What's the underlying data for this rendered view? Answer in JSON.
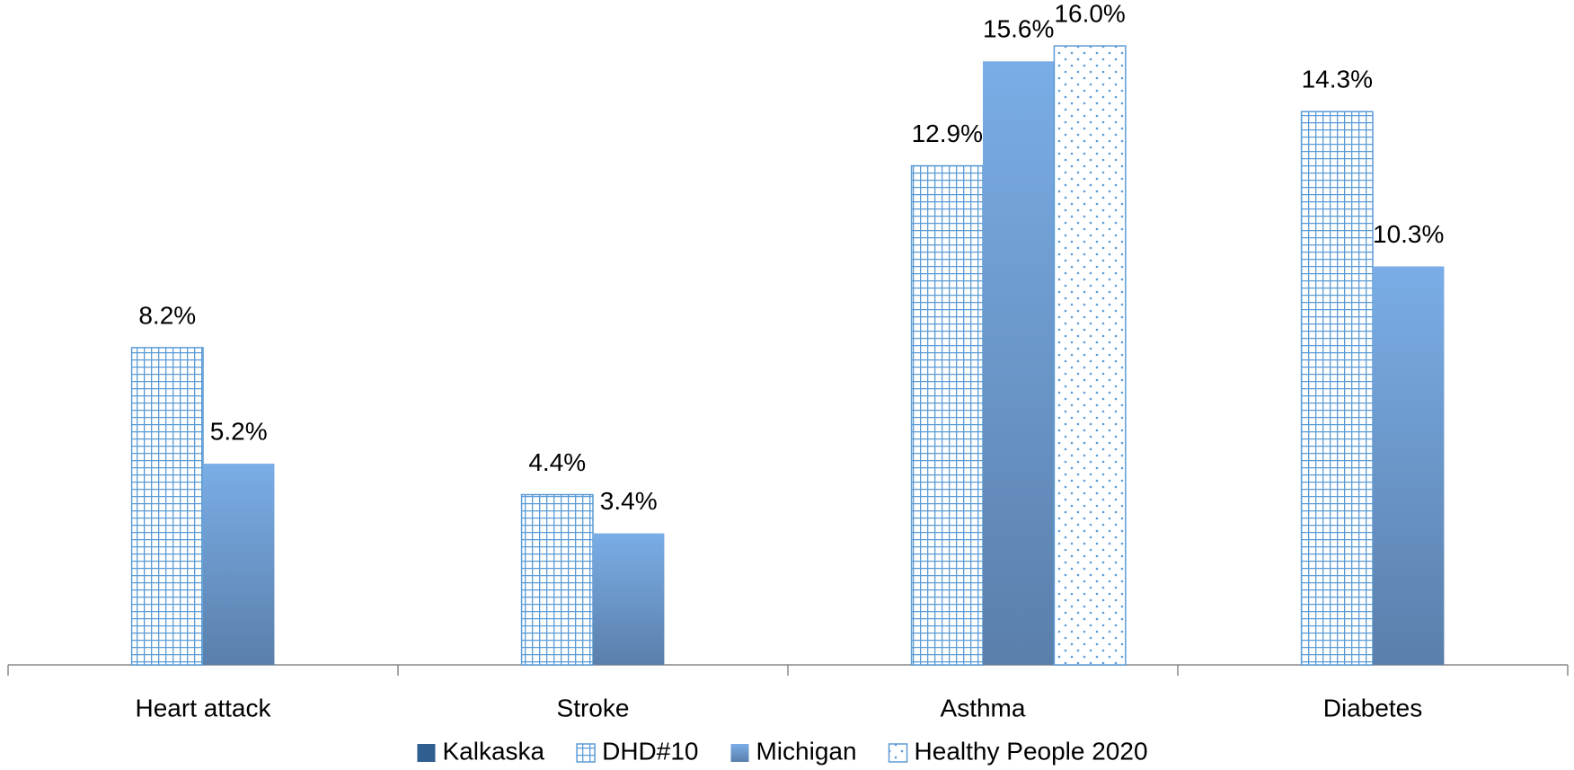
{
  "chart_data": {
    "type": "bar",
    "categories": [
      "Heart attack",
      "Stroke",
      "Asthma",
      "Diabetes"
    ],
    "series": [
      {
        "name": "Kalkaska",
        "color": "#2e5f8f",
        "pattern": "solid",
        "values": [
          null,
          null,
          null,
          null
        ],
        "value_labels": [
          null,
          null,
          null,
          null
        ]
      },
      {
        "name": "DHD#10",
        "color": "#5b9bd5",
        "pattern": "grid",
        "values": [
          8.2,
          4.4,
          12.9,
          14.3
        ],
        "value_labels": [
          "8.2%",
          "4.4%",
          "12.9%",
          "14.3%"
        ]
      },
      {
        "name": "Michigan",
        "color": "#6f9fd8",
        "pattern": "gradient",
        "values": [
          5.2,
          3.4,
          15.6,
          10.3
        ],
        "value_labels": [
          "5.2%",
          "3.4%",
          "15.6%",
          "10.3%"
        ]
      },
      {
        "name": "Healthy People 2020",
        "color": "#5b9bd5",
        "pattern": "dots",
        "values": [
          null,
          null,
          16.0,
          null
        ],
        "value_labels": [
          null,
          null,
          "16.0%",
          null
        ]
      }
    ],
    "ylim": [
      0,
      17
    ],
    "legend": "bottom"
  }
}
